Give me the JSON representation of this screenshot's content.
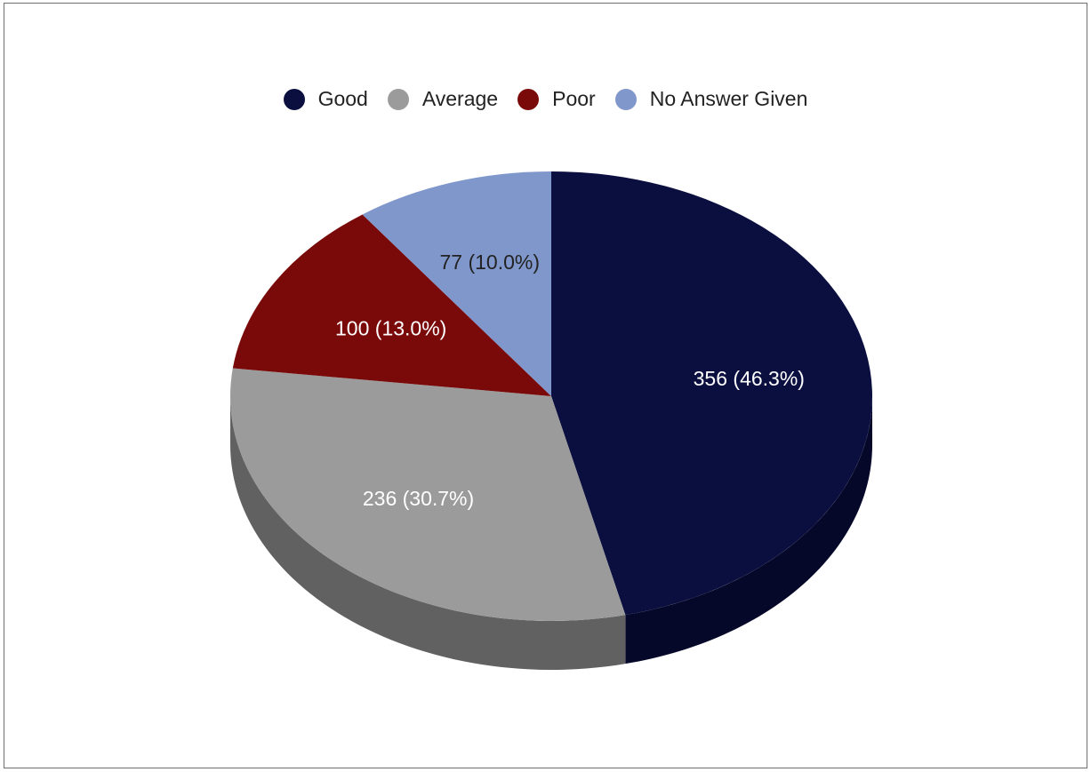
{
  "chart_data": {
    "type": "pie",
    "style": "3d",
    "legend_position": "top",
    "slices": [
      {
        "label": "Good",
        "value": 356,
        "percent": 46.3,
        "display": "356 (46.3%)",
        "color": "#0b0f3f",
        "side_color": "#06082a",
        "text_color": "#ffffff"
      },
      {
        "label": "Average",
        "value": 236,
        "percent": 30.7,
        "display": "236 (30.7%)",
        "color": "#9b9b9b",
        "side_color": "#616161",
        "text_color": "#ffffff"
      },
      {
        "label": "Poor",
        "value": 100,
        "percent": 13.0,
        "display": "100 (13.0%)",
        "color": "#7a0a0a",
        "side_color": "#4a0505",
        "text_color": "#ffffff"
      },
      {
        "label": "No Answer Given",
        "value": 77,
        "percent": 10.0,
        "display": "77 (10.0%)",
        "color": "#7f97cb",
        "side_color": "#5b6f99",
        "text_color": "#222222"
      }
    ]
  }
}
